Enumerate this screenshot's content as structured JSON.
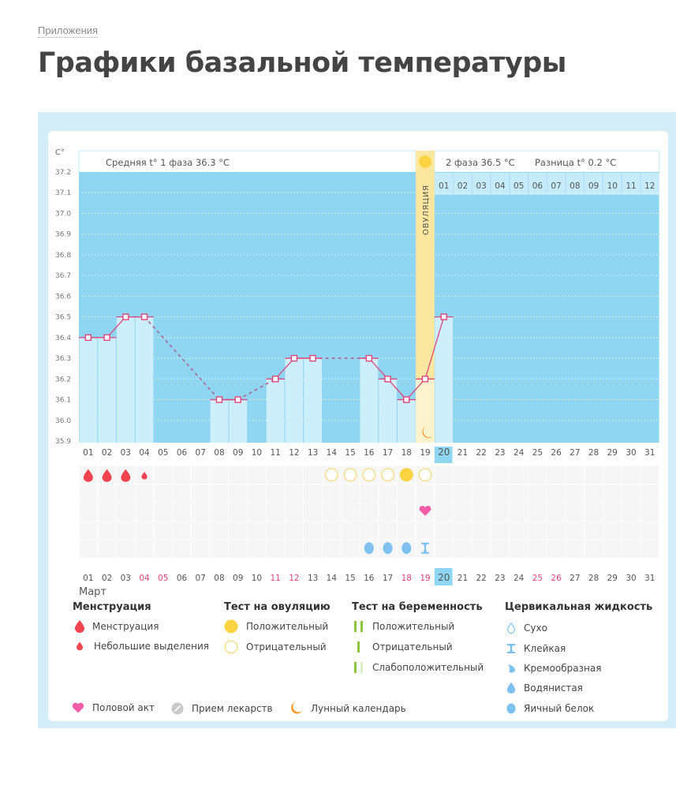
{
  "breadcrumb": "Приложения",
  "title": "Графики базальной температуры",
  "chart_header": {
    "unit": "C°",
    "phase1": "Средняя t° 1 фаза 36.3 °C",
    "phase2": "2 фаза 36.5 °C",
    "difference": "Разница t° 0.2 °C",
    "ovulation_label": "ОВУЛЯЦИЯ",
    "phase2_days": [
      "01",
      "02",
      "03",
      "04",
      "05",
      "06",
      "07",
      "08",
      "09",
      "10",
      "11",
      "12"
    ]
  },
  "month": "Март",
  "chart_data": {
    "type": "line",
    "title": "Графики базальной температуры",
    "xlabel": "Март",
    "ylabel": "C°",
    "ylim": [
      35.9,
      37.2
    ],
    "yticks": [
      37.2,
      37.1,
      37.0,
      36.9,
      36.8,
      36.7,
      36.6,
      36.5,
      36.4,
      36.3,
      36.2,
      36.1,
      36.0,
      35.9
    ],
    "categories": [
      "01",
      "02",
      "03",
      "04",
      "05",
      "06",
      "07",
      "08",
      "09",
      "10",
      "11",
      "12",
      "13",
      "14",
      "15",
      "16",
      "17",
      "18",
      "19",
      "20",
      "21",
      "22",
      "23",
      "24",
      "25",
      "26",
      "27",
      "28",
      "29",
      "30",
      "31"
    ],
    "series": [
      {
        "name": "Базальная температура",
        "values": [
          36.4,
          36.4,
          36.5,
          36.5,
          null,
          null,
          null,
          36.1,
          36.1,
          null,
          36.2,
          36.3,
          36.3,
          null,
          null,
          36.3,
          36.2,
          36.1,
          36.2,
          36.5,
          null,
          null,
          null,
          null,
          null,
          null,
          null,
          null,
          null,
          null,
          null
        ]
      }
    ],
    "dashed_gaps": [
      [
        4,
        8
      ],
      [
        9,
        11
      ],
      [
        13,
        16
      ]
    ],
    "phase1_avg": 36.3,
    "phase2_avg": 36.5,
    "difference": 0.2,
    "ovulation_day": "19",
    "current_day": "20",
    "highlighted_days_bottom": [
      "04",
      "05",
      "11",
      "12",
      "18",
      "19",
      "25",
      "26"
    ],
    "grid": true,
    "legend_position": "bottom"
  },
  "markers": {
    "menstruation": {
      "01": "full",
      "02": "full",
      "03": "full",
      "04": "small"
    },
    "ovulation_test": {
      "14": "negative",
      "15": "negative",
      "16": "negative",
      "17": "negative",
      "18": "positive",
      "19": "negative"
    },
    "intercourse": [
      "19"
    ],
    "cervical_fluid": {
      "16": "egg-white",
      "17": "egg-white",
      "18": "egg-white",
      "19": "sticky"
    },
    "lunar": [
      "19"
    ]
  },
  "legend": {
    "menstruation": {
      "title": "Менструация",
      "items": [
        "Менструация",
        "Небольшие выделения"
      ]
    },
    "ovulation_test": {
      "title": "Тест на овуляцию",
      "items": [
        "Положительный",
        "Отрицательный"
      ]
    },
    "pregnancy_test": {
      "title": "Тест на беременность",
      "items": [
        "Положительный",
        "Отрицательный",
        "Слабоположительный"
      ]
    },
    "cervical_fluid": {
      "title": "Цервикальная жидкость",
      "items": [
        "Сухо",
        "Клейкая",
        "Кремообразная",
        "Водянистая",
        "Яичный белок"
      ]
    },
    "other": [
      "Половой акт",
      "Прием лекарств",
      "Лунный календарь"
    ]
  },
  "colors": {
    "plot_bg": "#8fd6f2",
    "bar": "#cdeefb",
    "line": "#e0457a",
    "ovulation": "#fbe7a0",
    "blood": "#f2444f",
    "ovul_positive": "#fcd343",
    "heart": "#f25ca8",
    "fluid": "#7cc1ef",
    "moon": "#f39a1e",
    "highlight_day": "#e0457a"
  }
}
